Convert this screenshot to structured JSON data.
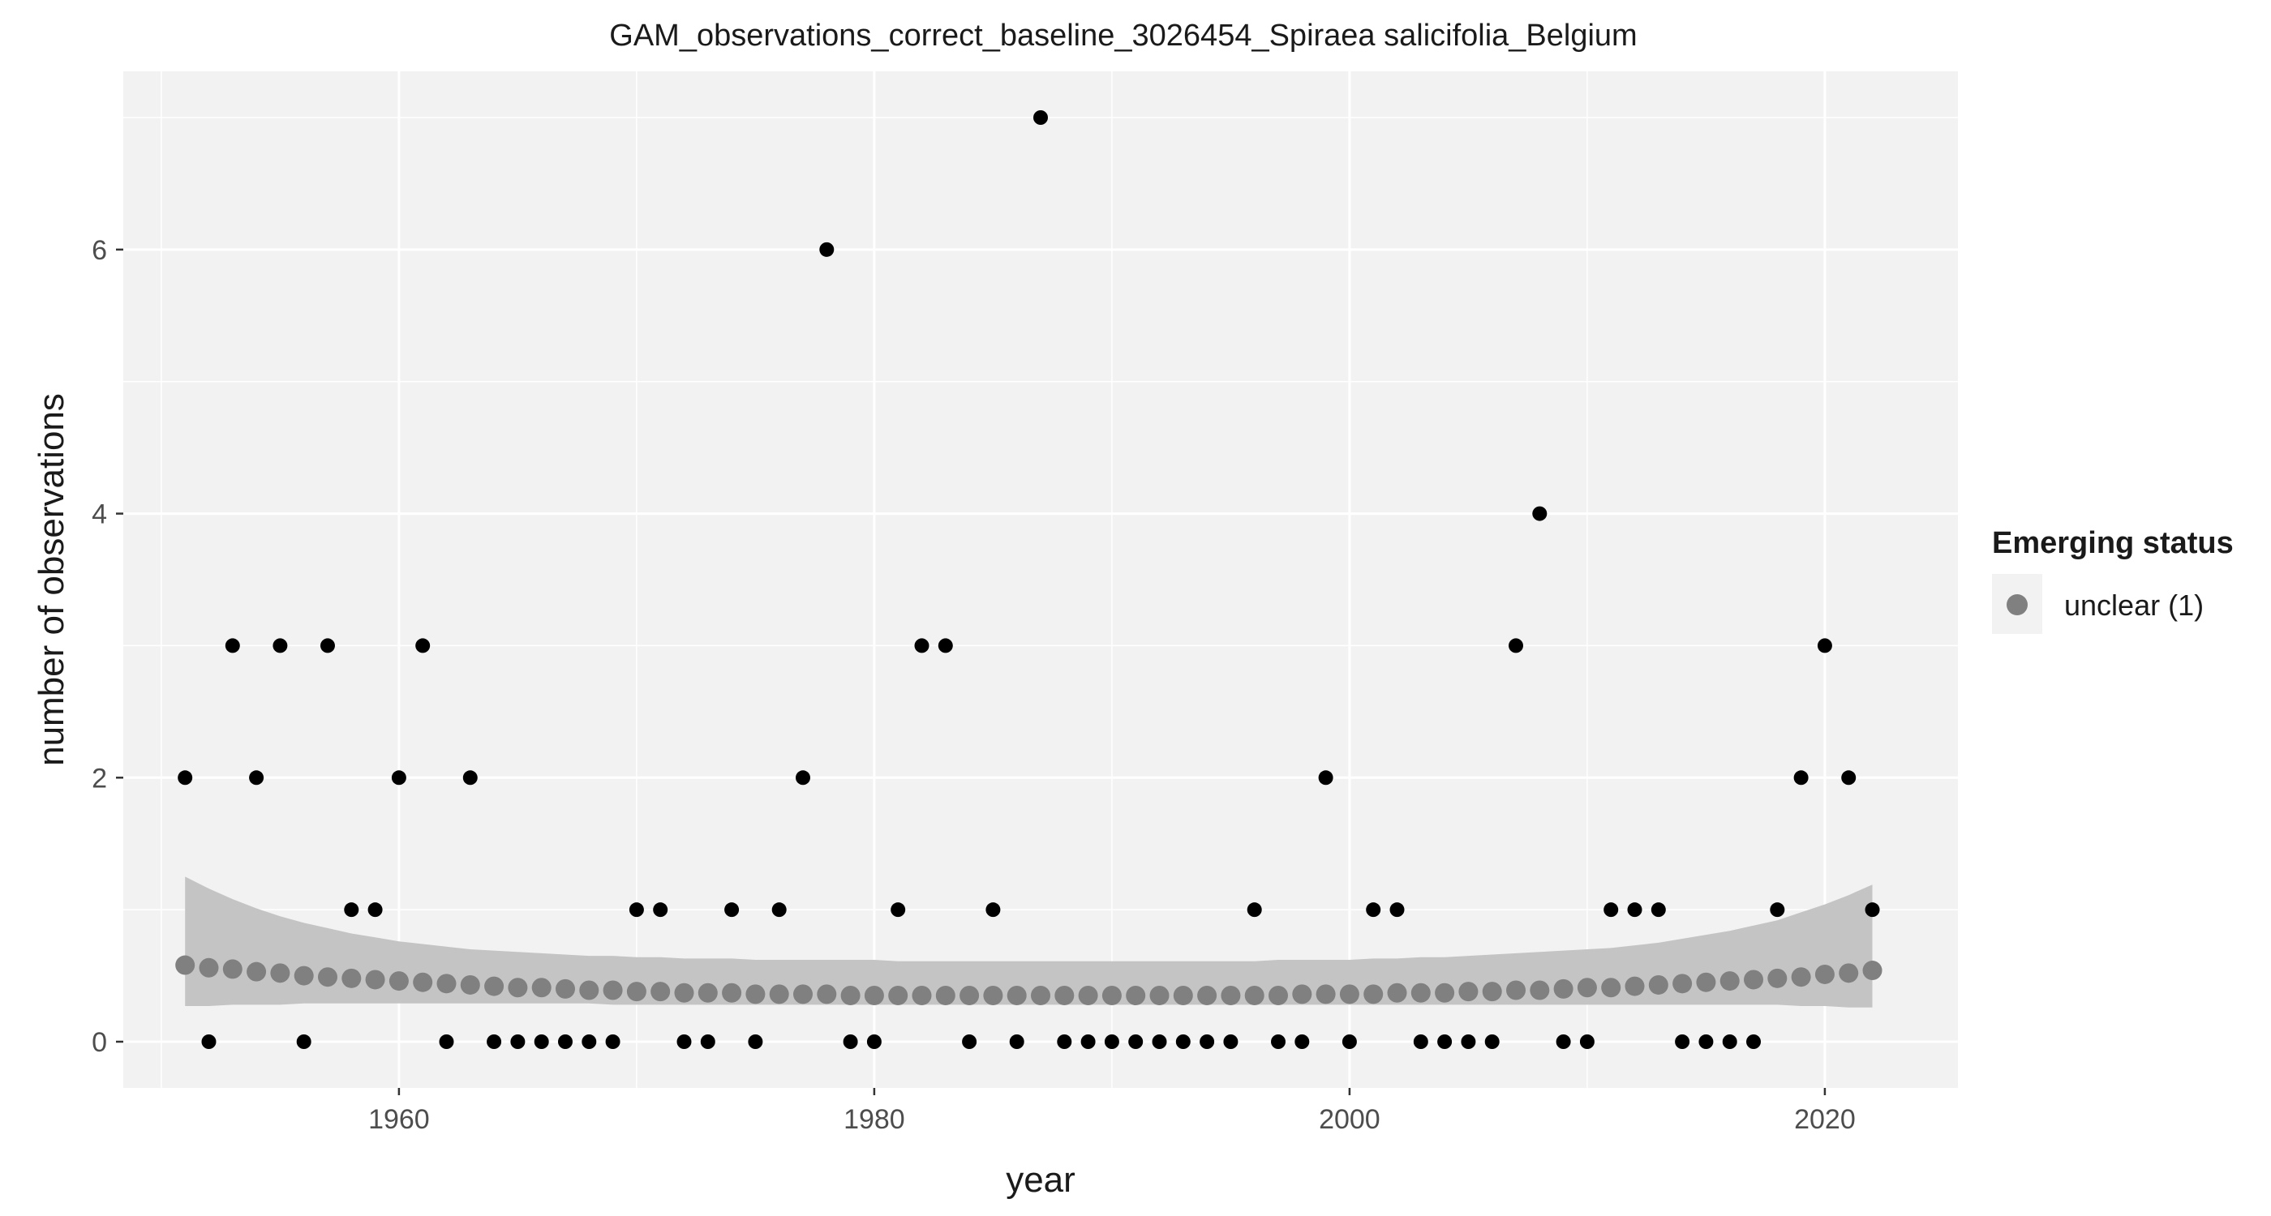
{
  "chart_data": {
    "type": "scatter",
    "title": "GAM_observations_correct_baseline_3026454_Spiraea salicifolia_Belgium",
    "xlabel": "year",
    "ylabel": "number of observations",
    "xlim": [
      1948.4,
      2025.6
    ],
    "ylim": [
      -0.35,
      7.35
    ],
    "x_ticks": [
      1960,
      1980,
      2000,
      2020
    ],
    "y_ticks": [
      0,
      2,
      4,
      6
    ],
    "grid": true,
    "legend_placement": "right",
    "legend": {
      "title": "Emerging status",
      "entries": [
        {
          "label": "unclear (1)",
          "color": "#808080"
        }
      ]
    },
    "colors": {
      "panel_background": "#f2f2f2",
      "grid": "#ffffff",
      "observation_points": "#000000",
      "fit_points": "#808080",
      "confidence_band": "#c4c4c4"
    },
    "observations": {
      "x": [
        1951,
        1952,
        1953,
        1954,
        1955,
        1956,
        1957,
        1958,
        1959,
        1960,
        1961,
        1962,
        1963,
        1964,
        1965,
        1966,
        1967,
        1968,
        1969,
        1970,
        1971,
        1972,
        1973,
        1974,
        1975,
        1976,
        1977,
        1978,
        1979,
        1980,
        1981,
        1982,
        1983,
        1984,
        1985,
        1986,
        1987,
        1988,
        1989,
        1990,
        1991,
        1992,
        1993,
        1994,
        1995,
        1996,
        1997,
        1998,
        1999,
        2000,
        2001,
        2002,
        2003,
        2004,
        2005,
        2006,
        2007,
        2008,
        2009,
        2010,
        2011,
        2012,
        2013,
        2014,
        2015,
        2016,
        2017,
        2018,
        2019,
        2020,
        2021,
        2022
      ],
      "y": [
        2,
        0,
        3,
        2,
        3,
        0,
        3,
        1,
        1,
        2,
        3,
        0,
        2,
        0,
        0,
        0,
        0,
        0,
        0,
        1,
        1,
        0,
        0,
        1,
        0,
        1,
        2,
        6,
        0,
        0,
        1,
        3,
        3,
        0,
        1,
        0,
        7,
        0,
        0,
        0,
        0,
        0,
        0,
        0,
        0,
        1,
        0,
        0,
        2,
        0,
        1,
        1,
        0,
        0,
        0,
        0,
        3,
        4,
        0,
        0,
        1,
        1,
        1,
        0,
        0,
        0,
        0,
        1,
        2,
        3,
        2,
        1
      ]
    },
    "series": [
      {
        "name": "unclear (1)",
        "type": "gam_fit",
        "x": [
          1951,
          1952,
          1953,
          1954,
          1955,
          1956,
          1957,
          1958,
          1959,
          1960,
          1961,
          1962,
          1963,
          1964,
          1965,
          1966,
          1967,
          1968,
          1969,
          1970,
          1971,
          1972,
          1973,
          1974,
          1975,
          1976,
          1977,
          1978,
          1979,
          1980,
          1981,
          1982,
          1983,
          1984,
          1985,
          1986,
          1987,
          1988,
          1989,
          1990,
          1991,
          1992,
          1993,
          1994,
          1995,
          1996,
          1997,
          1998,
          1999,
          2000,
          2001,
          2002,
          2003,
          2004,
          2005,
          2006,
          2007,
          2008,
          2009,
          2010,
          2011,
          2012,
          2013,
          2014,
          2015,
          2016,
          2017,
          2018,
          2019,
          2020,
          2021,
          2022
        ],
        "fit": [
          0.58,
          0.56,
          0.55,
          0.53,
          0.52,
          0.5,
          0.49,
          0.48,
          0.47,
          0.46,
          0.45,
          0.44,
          0.43,
          0.42,
          0.41,
          0.41,
          0.4,
          0.39,
          0.39,
          0.38,
          0.38,
          0.37,
          0.37,
          0.37,
          0.36,
          0.36,
          0.36,
          0.36,
          0.35,
          0.35,
          0.35,
          0.35,
          0.35,
          0.35,
          0.35,
          0.35,
          0.35,
          0.35,
          0.35,
          0.35,
          0.35,
          0.35,
          0.35,
          0.35,
          0.35,
          0.35,
          0.35,
          0.36,
          0.36,
          0.36,
          0.36,
          0.37,
          0.37,
          0.37,
          0.38,
          0.38,
          0.39,
          0.39,
          0.4,
          0.41,
          0.41,
          0.42,
          0.43,
          0.44,
          0.45,
          0.46,
          0.47,
          0.48,
          0.49,
          0.51,
          0.52,
          0.54
        ],
        "lower": [
          0.27,
          0.27,
          0.28,
          0.28,
          0.28,
          0.29,
          0.29,
          0.29,
          0.29,
          0.29,
          0.29,
          0.29,
          0.29,
          0.29,
          0.29,
          0.29,
          0.29,
          0.29,
          0.28,
          0.28,
          0.28,
          0.28,
          0.28,
          0.28,
          0.28,
          0.28,
          0.28,
          0.28,
          0.28,
          0.28,
          0.28,
          0.28,
          0.28,
          0.28,
          0.28,
          0.28,
          0.28,
          0.28,
          0.28,
          0.28,
          0.28,
          0.28,
          0.28,
          0.28,
          0.28,
          0.28,
          0.28,
          0.28,
          0.28,
          0.28,
          0.28,
          0.28,
          0.28,
          0.28,
          0.28,
          0.28,
          0.28,
          0.28,
          0.28,
          0.28,
          0.28,
          0.28,
          0.28,
          0.28,
          0.28,
          0.28,
          0.28,
          0.28,
          0.27,
          0.27,
          0.26,
          0.26
        ],
        "upper": [
          1.25,
          1.16,
          1.08,
          1.01,
          0.95,
          0.9,
          0.86,
          0.82,
          0.79,
          0.76,
          0.74,
          0.72,
          0.7,
          0.69,
          0.68,
          0.67,
          0.66,
          0.65,
          0.65,
          0.64,
          0.64,
          0.63,
          0.63,
          0.63,
          0.62,
          0.62,
          0.62,
          0.62,
          0.62,
          0.62,
          0.61,
          0.61,
          0.61,
          0.61,
          0.61,
          0.61,
          0.61,
          0.61,
          0.61,
          0.61,
          0.61,
          0.61,
          0.61,
          0.61,
          0.61,
          0.61,
          0.62,
          0.62,
          0.62,
          0.62,
          0.63,
          0.63,
          0.64,
          0.64,
          0.65,
          0.66,
          0.67,
          0.68,
          0.69,
          0.7,
          0.71,
          0.73,
          0.75,
          0.78,
          0.81,
          0.84,
          0.88,
          0.92,
          0.98,
          1.04,
          1.11,
          1.19
        ]
      }
    ]
  }
}
